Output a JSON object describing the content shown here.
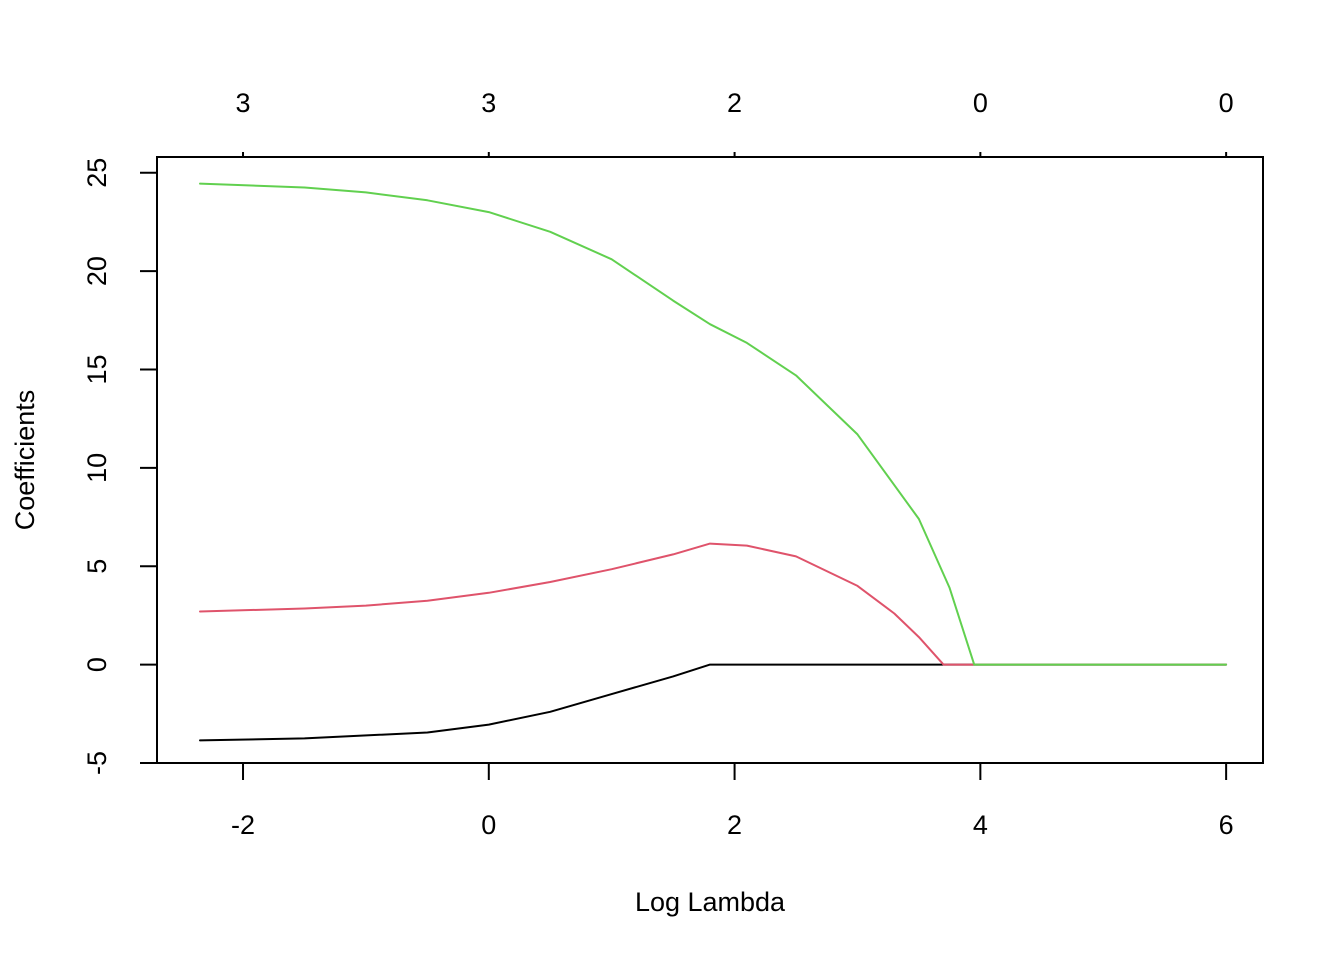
{
  "chart_data": {
    "type": "line",
    "title": "",
    "xlabel": "Log Lambda",
    "ylabel": "Coefficients",
    "xlim": [
      -2.7,
      6.3
    ],
    "ylim": [
      -5,
      25.8
    ],
    "x_ticks": [
      -2,
      0,
      2,
      4,
      6
    ],
    "x_tick_labels": [
      "-2",
      "0",
      "2",
      "4",
      "6"
    ],
    "y_ticks": [
      -5,
      0,
      5,
      10,
      15,
      20,
      25
    ],
    "y_tick_labels": [
      "-5",
      "0",
      "5",
      "10",
      "15",
      "20",
      "25"
    ],
    "top_ticks": [
      -2,
      0,
      2,
      4,
      6
    ],
    "top_tick_labels": [
      "3",
      "3",
      "2",
      "0",
      "0"
    ],
    "grid": false,
    "legend": "none",
    "series": [
      {
        "color": "#000000",
        "points": [
          [
            -2.35,
            -3.85
          ],
          [
            -1.5,
            -3.75
          ],
          [
            -0.5,
            -3.45
          ],
          [
            0,
            -3.05
          ],
          [
            0.5,
            -2.4
          ],
          [
            1.0,
            -1.5
          ],
          [
            1.5,
            -0.6
          ],
          [
            1.8,
            0
          ],
          [
            2.5,
            0
          ],
          [
            3.0,
            0
          ],
          [
            3.7,
            0
          ],
          [
            4.0,
            0
          ],
          [
            5.0,
            0
          ],
          [
            6.0,
            0
          ]
        ]
      },
      {
        "color": "#DF536B",
        "points": [
          [
            -2.35,
            2.7
          ],
          [
            -1.5,
            2.85
          ],
          [
            -1.0,
            3.0
          ],
          [
            -0.5,
            3.25
          ],
          [
            0,
            3.65
          ],
          [
            0.5,
            4.2
          ],
          [
            1.0,
            4.85
          ],
          [
            1.5,
            5.6
          ],
          [
            1.8,
            6.15
          ],
          [
            2.1,
            6.05
          ],
          [
            2.5,
            5.5
          ],
          [
            3.0,
            4.0
          ],
          [
            3.3,
            2.6
          ],
          [
            3.5,
            1.4
          ],
          [
            3.7,
            0
          ],
          [
            3.95,
            0
          ],
          [
            5.0,
            0
          ],
          [
            6.0,
            0
          ]
        ]
      },
      {
        "color": "#61D04F",
        "points": [
          [
            -2.35,
            24.45
          ],
          [
            -1.5,
            24.25
          ],
          [
            -1.0,
            24.0
          ],
          [
            -0.5,
            23.6
          ],
          [
            0,
            23.0
          ],
          [
            0.5,
            22.0
          ],
          [
            1.0,
            20.6
          ],
          [
            1.5,
            18.5
          ],
          [
            1.8,
            17.3
          ],
          [
            2.1,
            16.35
          ],
          [
            2.5,
            14.7
          ],
          [
            3.0,
            11.7
          ],
          [
            3.5,
            7.4
          ],
          [
            3.75,
            3.9
          ],
          [
            3.95,
            0
          ],
          [
            5.0,
            0
          ],
          [
            6.0,
            0
          ]
        ]
      }
    ]
  }
}
